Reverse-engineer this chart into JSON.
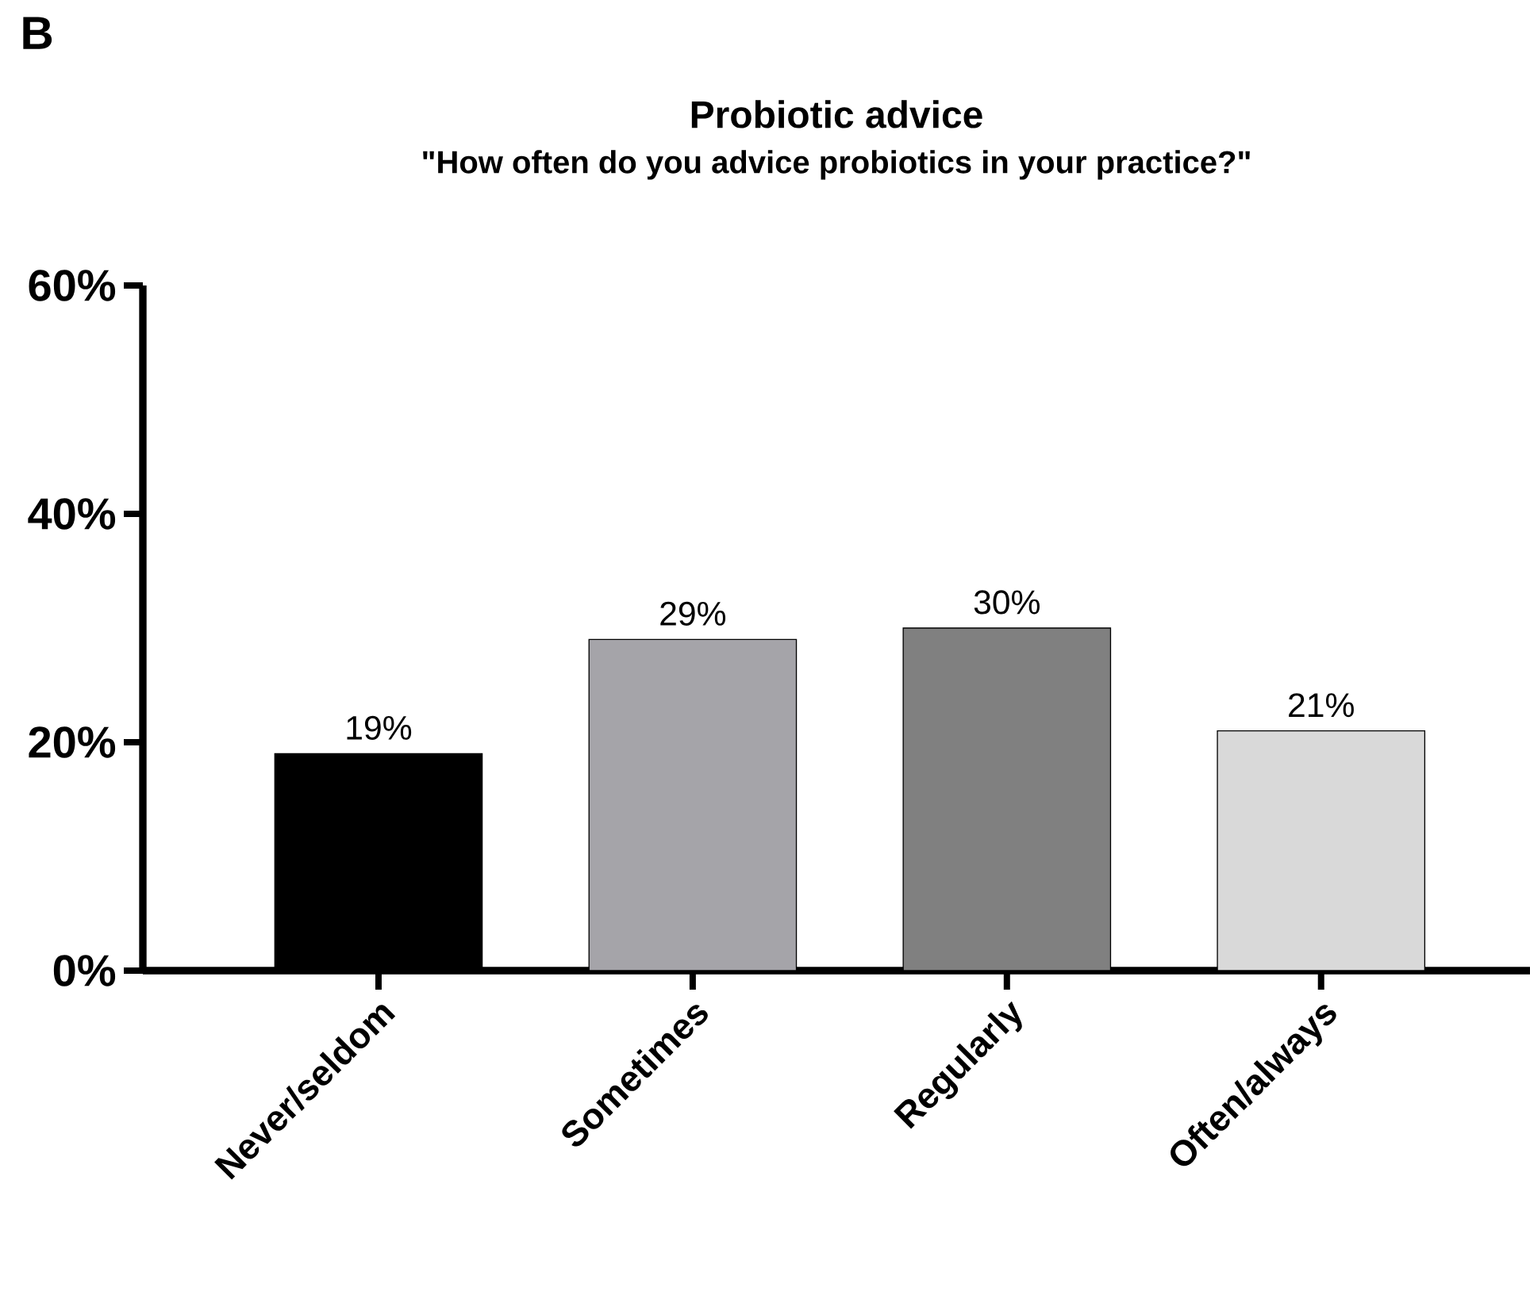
{
  "chart_data": {
    "type": "bar",
    "title": "Probiotic advice",
    "subtitle": "\"How often do you advice probiotics in your practice?\"",
    "annotations": [
      "B"
    ],
    "categories": [
      "Never/seldom",
      "Sometimes",
      "Regularly",
      "Often/always"
    ],
    "values": [
      19,
      29,
      30,
      21
    ],
    "colors": [
      "#000000",
      "#a5a4a9",
      "#808080",
      "#d9d9d9"
    ],
    "value_labels": [
      "19%",
      "29%",
      "30%",
      "21%"
    ],
    "ylim": [
      0,
      60
    ],
    "yticks": [
      {
        "value": 0,
        "label": "0%"
      },
      {
        "value": 20,
        "label": "20%"
      },
      {
        "value": 40,
        "label": "40%"
      },
      {
        "value": 60,
        "label": "60%"
      }
    ]
  }
}
